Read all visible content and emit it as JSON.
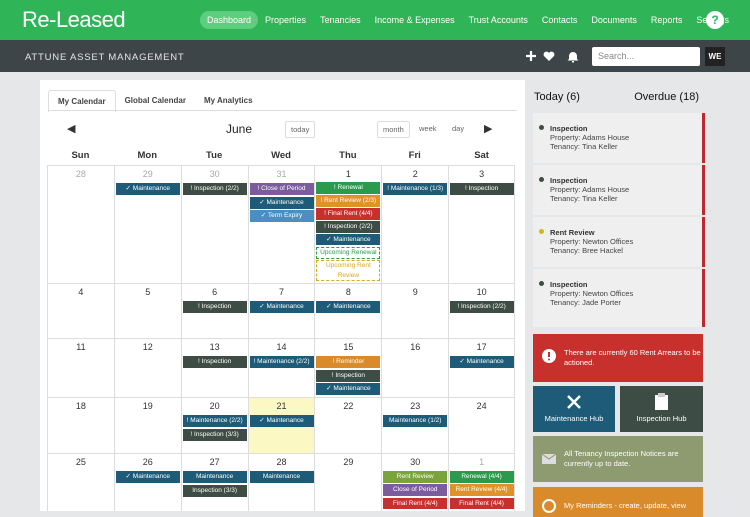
{
  "header": {
    "logo": "Re-Leased",
    "nav": [
      "Dashboard",
      "Properties",
      "Tenancies",
      "Income & Expenses",
      "Trust Accounts",
      "Contacts",
      "Documents",
      "Reports",
      "Settings"
    ],
    "help": "?"
  },
  "subheader": {
    "company": "ATTUNE ASSET MANAGEMENT",
    "search_placeholder": "Search...",
    "user": "WE"
  },
  "calendar": {
    "tabs": [
      "My Calendar",
      "Global Calendar",
      "My Analytics"
    ],
    "month": "June",
    "today_button": "today",
    "views": [
      "month",
      "week",
      "day"
    ],
    "weekdays": [
      "Sun",
      "Mon",
      "Tue",
      "Wed",
      "Thu",
      "Fri",
      "Sat"
    ],
    "weeks": [
      [
        {
          "day": "28",
          "muted": true,
          "events": []
        },
        {
          "day": "29",
          "muted": true,
          "events": [
            {
              "text": "✓ Maintenance",
              "color": "#1d5b78"
            }
          ]
        },
        {
          "day": "30",
          "muted": true,
          "events": [
            {
              "text": "! Inspection (2/2)",
              "color": "#3e4c46"
            }
          ]
        },
        {
          "day": "31",
          "muted": true,
          "events": [
            {
              "text": "! Close of Period",
              "color": "#7b5c9c"
            },
            {
              "text": "✓ Maintenance",
              "color": "#1d5b78"
            },
            {
              "text": "✓ Term Expiry",
              "color": "#4a8fc2"
            }
          ]
        },
        {
          "day": "1",
          "events": [
            {
              "text": "! Renewal",
              "color": "#2b9a4d"
            },
            {
              "text": "! Rent Review (2/3)",
              "color": "#e0922a"
            },
            {
              "text": "! Final Rent (4/4)",
              "color": "#c8302e"
            },
            {
              "text": "! Inspection (2/2)",
              "color": "#3e4c46"
            },
            {
              "text": "✓ Maintenance",
              "color": "#1d5b78"
            },
            {
              "text": "Upcoming Renewal",
              "color": "#2b9a4d",
              "dashed": true
            },
            {
              "text": "Upcoming Rent Review",
              "color": "#d9a81e",
              "dashed": true
            }
          ]
        },
        {
          "day": "2",
          "events": [
            {
              "text": "! Maintenance (1/3)",
              "color": "#1d5b78"
            }
          ]
        },
        {
          "day": "3",
          "events": [
            {
              "text": "! Inspection",
              "color": "#3e4c46"
            }
          ]
        }
      ],
      [
        {
          "day": "4",
          "events": []
        },
        {
          "day": "5",
          "events": []
        },
        {
          "day": "6",
          "events": [
            {
              "text": "! Inspection",
              "color": "#3e4c46"
            }
          ]
        },
        {
          "day": "7",
          "events": [
            {
              "text": "✓ Maintenance",
              "color": "#1d5b78"
            }
          ]
        },
        {
          "day": "8",
          "events": [
            {
              "text": "✓ Maintenance",
              "color": "#1d5b78"
            }
          ]
        },
        {
          "day": "9",
          "events": []
        },
        {
          "day": "10",
          "events": [
            {
              "text": "! Inspection (2/2)",
              "color": "#3e4c46"
            }
          ]
        }
      ],
      [
        {
          "day": "11",
          "events": []
        },
        {
          "day": "12",
          "events": []
        },
        {
          "day": "13",
          "events": [
            {
              "text": "! Inspection",
              "color": "#3e4c46"
            }
          ]
        },
        {
          "day": "14",
          "events": [
            {
              "text": "! Maintenance (2/2)",
              "color": "#1d5b78"
            }
          ]
        },
        {
          "day": "15",
          "events": [
            {
              "text": "! Reminder",
              "color": "#d98a2b"
            },
            {
              "text": "! Inspection",
              "color": "#3e4c46"
            },
            {
              "text": "✓ Maintenance",
              "color": "#1d5b78"
            }
          ]
        },
        {
          "day": "16",
          "events": []
        },
        {
          "day": "17",
          "events": [
            {
              "text": "✓ Maintenance",
              "color": "#1d5b78"
            }
          ]
        }
      ],
      [
        {
          "day": "18",
          "events": []
        },
        {
          "day": "19",
          "events": []
        },
        {
          "day": "20",
          "events": [
            {
              "text": "! Maintenance (2/2)",
              "color": "#1d5b78"
            },
            {
              "text": "! Inspection (3/3)",
              "color": "#3e4c46"
            }
          ]
        },
        {
          "day": "21",
          "today": true,
          "events": [
            {
              "text": "✓ Maintenance",
              "color": "#1d5b78"
            }
          ]
        },
        {
          "day": "22",
          "events": []
        },
        {
          "day": "23",
          "events": [
            {
              "text": "Maintenance (1/2)",
              "color": "#1d5b78"
            }
          ]
        },
        {
          "day": "24",
          "events": []
        }
      ],
      [
        {
          "day": "25",
          "events": []
        },
        {
          "day": "26",
          "events": [
            {
              "text": "✓ Maintenance",
              "color": "#1d5b78"
            }
          ]
        },
        {
          "day": "27",
          "events": [
            {
              "text": "Maintenance",
              "color": "#1d5b78"
            },
            {
              "text": "Inspection (3/3)",
              "color": "#3e4c46"
            }
          ]
        },
        {
          "day": "28",
          "events": [
            {
              "text": "Maintenance",
              "color": "#1d5b78"
            }
          ]
        },
        {
          "day": "29",
          "events": []
        },
        {
          "day": "30",
          "events": [
            {
              "text": "Rent Review",
              "color": "#7aa33a"
            },
            {
              "text": "Close of Period",
              "color": "#7b5c9c"
            },
            {
              "text": "Final Rent (4/4)",
              "color": "#c8302e"
            }
          ]
        },
        {
          "day": "1",
          "muted": true,
          "events": [
            {
              "text": "Renewal (4/4)",
              "color": "#2b9a4d"
            },
            {
              "text": "Rent Review (4/4)",
              "color": "#e0922a"
            },
            {
              "text": "Final Rent (4/4)",
              "color": "#c8302e"
            }
          ]
        }
      ]
    ]
  },
  "sidebar": {
    "today": "Today (6)",
    "overdue": "Overdue (18)",
    "tasks": [
      {
        "title": "Inspection",
        "property": "Property: Adams House",
        "tenancy": "Tenancy: Tina Keller",
        "dot": "#3e4c46"
      },
      {
        "title": "Inspection",
        "property": "Property: Adams House",
        "tenancy": "Tenancy: Tina Keller",
        "dot": "#3e4c46"
      },
      {
        "title": "Rent Review",
        "property": "Property: Newton Offices",
        "tenancy": "Tenancy: Bree Hackel",
        "dot": "#d9b21e"
      },
      {
        "title": "Inspection",
        "property": "Property: Newton Offices",
        "tenancy": "Tenancy: Jade Porter",
        "dot": "#3e4c46"
      }
    ],
    "alert": "There are currently 60 Rent Arrears to be actioned.",
    "maintenance_hub": "Maintenance Hub",
    "inspection_hub": "Inspection Hub",
    "notice": "All Tenancy Inspection Notices are currently up to date.",
    "reminders": "My Reminders - create, update, view"
  }
}
